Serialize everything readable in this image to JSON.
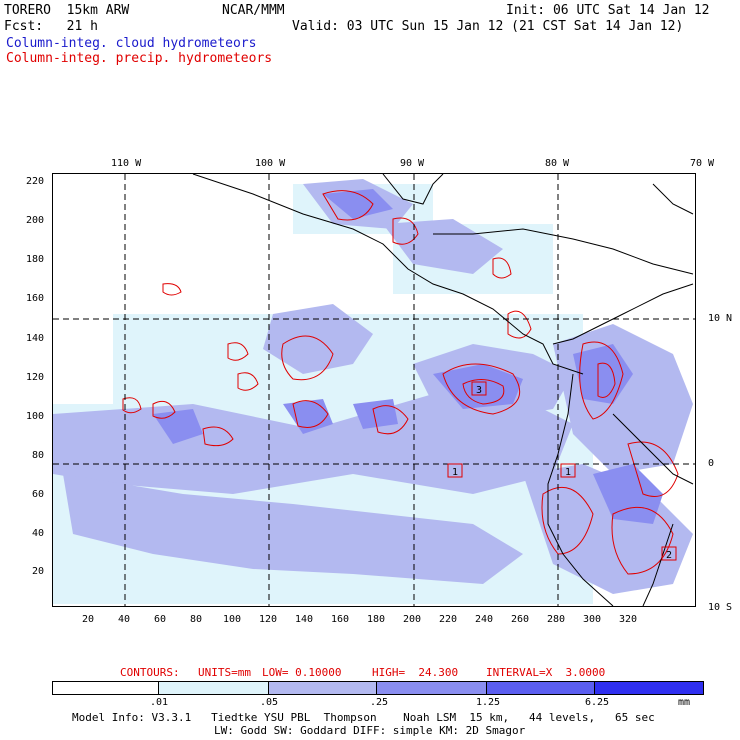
{
  "header": {
    "model": "TORERO  15km ARW",
    "org": "NCAR/MMM",
    "init": "Init: 06 UTC Sat 14 Jan 12",
    "fcst": "Fcst:   21 h",
    "valid": "Valid: 03 UTC Sun 15 Jan 12 (21 CST Sat 14 Jan 12)"
  },
  "legend": {
    "cloud": "Column-integ. cloud hydrometeors",
    "precip": "Column-integ. precip. hydrometeors"
  },
  "colors": {
    "cloud_blue": "#1a1acc",
    "precip_red": "#e00000",
    "level1": "#ffffff",
    "level2": "#dff4fb",
    "level3": "#b3b9f0",
    "level4": "#8a8ef0",
    "level5": "#5b5ef0",
    "level6": "#2f2ff0"
  },
  "axes": {
    "top_lon_labels": [
      "110 W",
      "100 W",
      "90 W",
      "80 W",
      "70 W"
    ],
    "right_lat_labels": [
      "10 N",
      "0",
      "10 S"
    ],
    "y_ticks": [
      "220",
      "200",
      "180",
      "160",
      "140",
      "120",
      "100",
      "80",
      "60",
      "40",
      "20"
    ],
    "x_ticks": [
      "20",
      "40",
      "60",
      "80",
      "100",
      "120",
      "140",
      "160",
      "180",
      "200",
      "220",
      "240",
      "260",
      "280",
      "300",
      "320"
    ]
  },
  "grid_points": [
    "1",
    "3",
    "1",
    "2"
  ],
  "contours": {
    "label": "CONTOURS:",
    "units": "UNITS=mm",
    "low": "LOW= 0.10000",
    "high": "HIGH=  24.300",
    "interval": "INTERVAL=X  3.0000"
  },
  "colorbar": {
    "labels": [
      ".01",
      ".05",
      ".25",
      "1.25",
      "6.25"
    ],
    "unit": "mm"
  },
  "footer": {
    "line1": "Model Info: V3.3.1   Tiedtke YSU PBL  Thompson    Noah LSM  15 km,   44 levels,   65 sec",
    "line2": "LW: Godd SW: Goddard DIFF: simple KM: 2D Smagor"
  }
}
